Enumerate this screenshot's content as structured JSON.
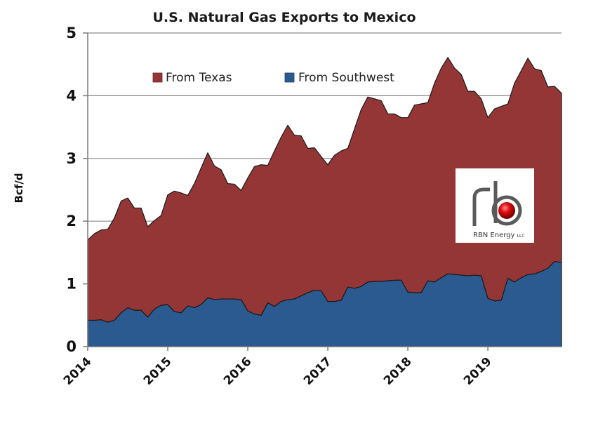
{
  "chart_data": {
    "type": "area",
    "stacked": true,
    "title": "U.S. Natural Gas Exports to Mexico",
    "xlabel": "",
    "ylabel": "Bcf/d",
    "ylim": [
      0,
      5
    ],
    "yticks": [
      "0",
      "1",
      "2",
      "3",
      "4",
      "5"
    ],
    "xlim": [
      2014.0,
      2019.92
    ],
    "xticks": [
      "2014",
      "2015",
      "2016",
      "2017",
      "2018",
      "2019"
    ],
    "grid": "horizontal",
    "legend_position": "top-left",
    "x": [
      2014.0,
      2014.083,
      2014.167,
      2014.25,
      2014.333,
      2014.417,
      2014.5,
      2014.583,
      2014.667,
      2014.75,
      2014.833,
      2014.917,
      2015.0,
      2015.083,
      2015.167,
      2015.25,
      2015.333,
      2015.417,
      2015.5,
      2015.583,
      2015.667,
      2015.75,
      2015.833,
      2015.917,
      2016.0,
      2016.083,
      2016.167,
      2016.25,
      2016.333,
      2016.417,
      2016.5,
      2016.583,
      2016.667,
      2016.75,
      2016.833,
      2016.917,
      2017.0,
      2017.083,
      2017.167,
      2017.25,
      2017.333,
      2017.417,
      2017.5,
      2017.583,
      2017.667,
      2017.75,
      2017.833,
      2017.917,
      2018.0,
      2018.083,
      2018.167,
      2018.25,
      2018.333,
      2018.417,
      2018.5,
      2018.583,
      2018.667,
      2018.75,
      2018.833,
      2018.917,
      2019.0,
      2019.083,
      2019.167,
      2019.25,
      2019.333,
      2019.417,
      2019.5,
      2019.583,
      2019.667,
      2019.75,
      2019.833,
      2019.92
    ],
    "series": [
      {
        "name": "From Southwest",
        "color": "#2a5a8f",
        "values": [
          0.42,
          0.42,
          0.43,
          0.39,
          0.42,
          0.54,
          0.62,
          0.58,
          0.58,
          0.47,
          0.6,
          0.66,
          0.67,
          0.56,
          0.54,
          0.65,
          0.62,
          0.67,
          0.78,
          0.75,
          0.76,
          0.76,
          0.76,
          0.75,
          0.57,
          0.52,
          0.5,
          0.7,
          0.64,
          0.72,
          0.75,
          0.76,
          0.81,
          0.86,
          0.9,
          0.89,
          0.72,
          0.72,
          0.74,
          0.95,
          0.93,
          0.96,
          1.03,
          1.04,
          1.04,
          1.05,
          1.06,
          1.06,
          0.87,
          0.86,
          0.86,
          1.05,
          1.03,
          1.1,
          1.16,
          1.15,
          1.14,
          1.13,
          1.14,
          1.13,
          0.77,
          0.73,
          0.74,
          1.09,
          1.03,
          1.1,
          1.15,
          1.16,
          1.2,
          1.25,
          1.36,
          1.34
        ]
      },
      {
        "name": "From Texas",
        "color": "#953636",
        "values": [
          1.28,
          1.38,
          1.43,
          1.48,
          1.63,
          1.78,
          1.75,
          1.63,
          1.63,
          1.44,
          1.41,
          1.43,
          1.75,
          1.92,
          1.91,
          1.76,
          1.98,
          2.18,
          2.31,
          2.13,
          2.06,
          1.84,
          1.83,
          1.74,
          2.12,
          2.35,
          2.4,
          2.19,
          2.48,
          2.62,
          2.78,
          2.61,
          2.55,
          2.3,
          2.27,
          2.14,
          2.18,
          2.33,
          2.38,
          2.21,
          2.54,
          2.82,
          2.95,
          2.91,
          2.88,
          2.66,
          2.65,
          2.59,
          2.78,
          2.99,
          3.01,
          2.84,
          3.17,
          3.34,
          3.45,
          3.29,
          3.2,
          2.94,
          2.93,
          2.82,
          2.88,
          3.06,
          3.09,
          2.78,
          3.17,
          3.3,
          3.45,
          3.27,
          3.2,
          2.89,
          2.79,
          2.7
        ]
      }
    ]
  },
  "legend": {
    "texas_label": "From Texas",
    "southwest_label": "From Southwest"
  },
  "logo": {
    "text": "RBN Energy",
    "suffix": "LLC"
  }
}
